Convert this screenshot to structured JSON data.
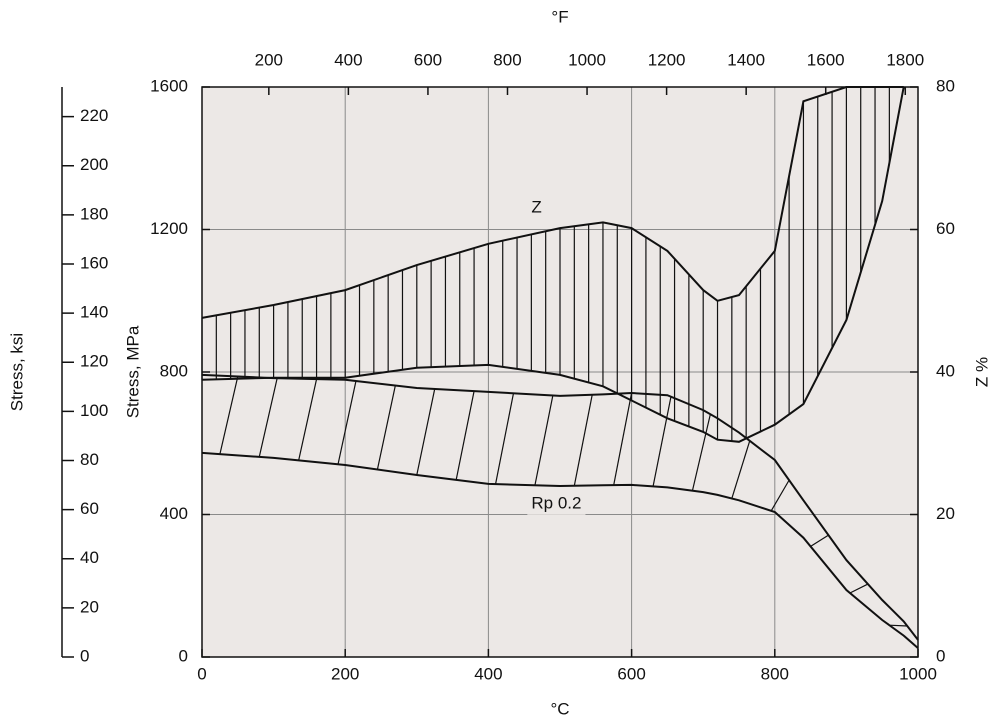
{
  "chart_data": {
    "type": "band",
    "x_label": "°C",
    "x2_label": "°F",
    "y_label": "Stress, MPa",
    "y2_label": "Z %",
    "y3_label": "Stress, ksi",
    "xlim": [
      0,
      1000
    ],
    "xticks": [
      0,
      200,
      400,
      600,
      800,
      1000
    ],
    "x2lim": [
      32,
      1832
    ],
    "x2ticks": [
      200,
      400,
      600,
      800,
      1000,
      1200,
      1400,
      1600,
      1800
    ],
    "ylim": [
      0,
      1600
    ],
    "yticks": [
      0,
      400,
      800,
      1200,
      1600
    ],
    "y2lim": [
      0,
      80
    ],
    "y2ticks": [
      0,
      20,
      40,
      60,
      80
    ],
    "y3lim": [
      0,
      232.06
    ],
    "y3ticks": [
      0,
      20,
      40,
      60,
      80,
      100,
      120,
      140,
      160,
      180,
      200,
      220
    ],
    "grid": true,
    "annotations": [
      {
        "text": "Z",
        "x": 460,
        "y": 1260
      },
      {
        "text": "Rp  0.2",
        "x": 460,
        "y": 430
      }
    ],
    "x": [
      0,
      100,
      200,
      300,
      400,
      500,
      560,
      600,
      650,
      700,
      720,
      750,
      800,
      840,
      900,
      950,
      980,
      1000
    ],
    "series": [
      {
        "color": "#111111",
        "axis": "y2",
        "hatch": "vertical",
        "band": 0,
        "values": [
          47.6,
          49.4,
          51.5,
          55,
          58,
          60.2,
          61,
          60.2,
          57,
          51.5,
          50,
          50.8,
          57,
          78,
          80,
          80,
          80,
          null
        ]
      },
      {
        "color": "#111111",
        "axis": "y2",
        "hatch": "vertical",
        "band": 0,
        "values": [
          38.9,
          39.2,
          39.2,
          40.6,
          41,
          39.6,
          38,
          36,
          33.5,
          31.6,
          30.5,
          30.2,
          32.6,
          35.5,
          47.3,
          64,
          80,
          null
        ]
      },
      {
        "color": "#111111",
        "hatch": "diagonal",
        "band": 1,
        "values": [
          792,
          783,
          778,
          755,
          744,
          733,
          737,
          741,
          735,
          693,
          670,
          630,
          553,
          440,
          272,
          160,
          100,
          48
        ]
      },
      {
        "color": "#111111",
        "hatch": "diagonal",
        "band": 1,
        "values": [
          573,
          559,
          539,
          511,
          486,
          480,
          482,
          483,
          476,
          463,
          455,
          440,
          407,
          335,
          188,
          104,
          60,
          25
        ]
      }
    ]
  }
}
